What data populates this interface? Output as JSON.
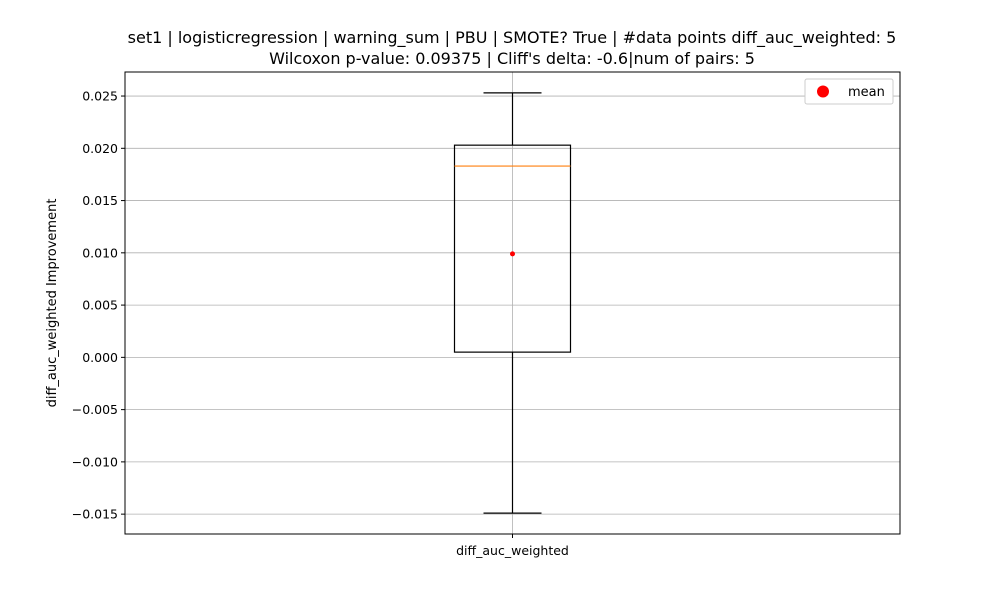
{
  "chart_data": {
    "type": "box",
    "title": "set1 | logisticregression | warning_sum | PBU | SMOTE? True | #data points diff_auc_weighted: 5",
    "subtitle": "Wilcoxon p-value: 0.09375 | Cliff's delta: -0.6|num of pairs: 5",
    "ylabel": "diff_auc_weighted Improvement",
    "xlabel": "",
    "categories": [
      "diff_auc_weighted"
    ],
    "ylim": [
      -0.0169,
      0.0273
    ],
    "yticks": [
      -0.015,
      -0.01,
      -0.005,
      0.0,
      0.005,
      0.01,
      0.015,
      0.02,
      0.025
    ],
    "ytick_labels": [
      "−0.015",
      "−0.010",
      "−0.005",
      "0.000",
      "0.005",
      "0.010",
      "0.015",
      "0.020",
      "0.025"
    ],
    "grid": true,
    "legend": {
      "position": "top-right",
      "entries": [
        {
          "label": "mean",
          "color": "#ff0000",
          "marker": "circle"
        }
      ]
    },
    "box": {
      "whisker_low": -0.0149,
      "q1": 0.0005,
      "median": 0.0183,
      "q3": 0.0203,
      "whisker_high": 0.0253,
      "mean": 0.0099
    },
    "colors": {
      "box": "#000000",
      "median": "#ff7f0e",
      "mean": "#ff0000",
      "grid": "#b0b0b0"
    }
  }
}
